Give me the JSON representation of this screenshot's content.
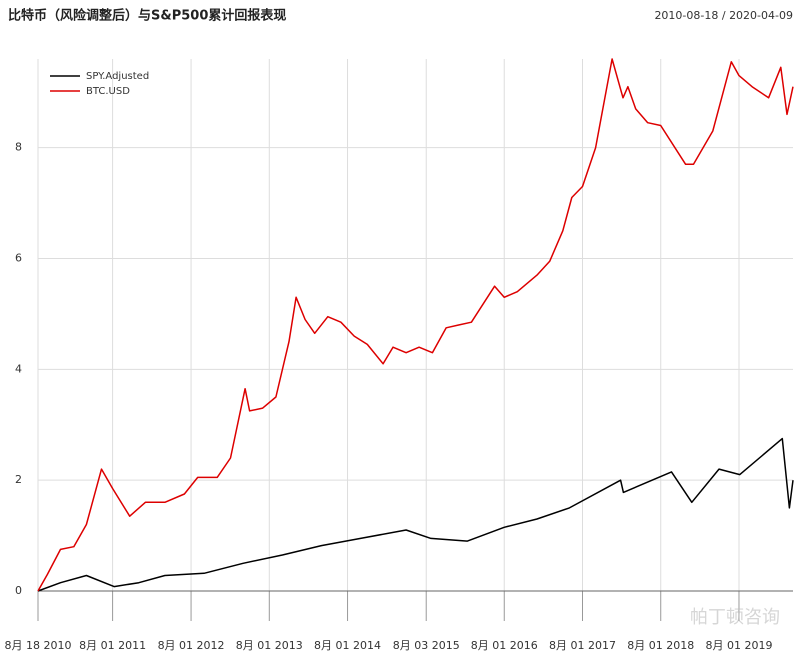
{
  "chart_data": {
    "type": "line",
    "title": "比特币（风险调整后）与S&P500累计回报表现",
    "subtitle": "2010-08-18 / 2020-04-09",
    "watermark": "帕丁顿咨询",
    "xlim": [
      "2010-08-18",
      "2020-04-09"
    ],
    "xticks": [
      {
        "value": "2010-08-18",
        "label": "8月 18 2010"
      },
      {
        "value": "2011-08-01",
        "label": "8月 01 2011"
      },
      {
        "value": "2012-08-01",
        "label": "8月 01 2012"
      },
      {
        "value": "2013-08-01",
        "label": "8月 01 2013"
      },
      {
        "value": "2014-08-01",
        "label": "8月 01 2014"
      },
      {
        "value": "2015-08-03",
        "label": "8月 03 2015"
      },
      {
        "value": "2016-08-01",
        "label": "8月 01 2016"
      },
      {
        "value": "2017-08-01",
        "label": "8月 01 2017"
      },
      {
        "value": "2018-08-01",
        "label": "8月 01 2018"
      },
      {
        "value": "2019-08-01",
        "label": "8月 01 2019"
      }
    ],
    "ylim": [
      0,
      9.6
    ],
    "yticks": [
      0,
      2,
      4,
      6,
      8
    ],
    "grid": true,
    "legend": "top-left",
    "series": [
      {
        "name": "SPY.Adjusted",
        "color": "#000000",
        "x": [
          "2010-08-18",
          "2010-12-01",
          "2011-04-01",
          "2011-08-08",
          "2011-12-01",
          "2012-04-01",
          "2012-10-01",
          "2013-04-01",
          "2013-10-01",
          "2014-04-01",
          "2014-10-01",
          "2015-05-01",
          "2015-08-25",
          "2016-02-11",
          "2016-08-01",
          "2017-01-01",
          "2017-06-01",
          "2018-01-26",
          "2018-02-08",
          "2018-09-20",
          "2018-12-24",
          "2019-04-30",
          "2019-08-05",
          "2020-02-19",
          "2020-03-23",
          "2020-04-09"
        ],
        "values": [
          0,
          0.15,
          0.28,
          0.08,
          0.15,
          0.28,
          0.32,
          0.5,
          0.65,
          0.82,
          0.95,
          1.1,
          0.95,
          0.9,
          1.15,
          1.3,
          1.5,
          2.0,
          1.78,
          2.15,
          1.6,
          2.2,
          2.1,
          2.75,
          1.5,
          2.0
        ]
      },
      {
        "name": "BTC.USD",
        "color": "#dd0000",
        "x": [
          "2010-08-18",
          "2010-10-01",
          "2010-12-01",
          "2011-02-01",
          "2011-04-01",
          "2011-06-10",
          "2011-08-01",
          "2011-10-20",
          "2012-01-01",
          "2012-04-01",
          "2012-07-01",
          "2012-09-01",
          "2012-12-01",
          "2013-02-01",
          "2013-04-10",
          "2013-05-01",
          "2013-07-01",
          "2013-09-01",
          "2013-11-01",
          "2013-12-04",
          "2014-01-15",
          "2014-03-01",
          "2014-05-01",
          "2014-07-01",
          "2014-09-01",
          "2014-11-01",
          "2015-01-14",
          "2015-03-01",
          "2015-05-01",
          "2015-07-01",
          "2015-09-01",
          "2015-11-04",
          "2016-01-01",
          "2016-03-01",
          "2016-06-17",
          "2016-08-01",
          "2016-10-01",
          "2017-01-01",
          "2017-03-01",
          "2017-05-01",
          "2017-06-12",
          "2017-08-01",
          "2017-10-01",
          "2017-12-17",
          "2018-02-06",
          "2018-03-01",
          "2018-04-06",
          "2018-06-01",
          "2018-08-01",
          "2018-11-25",
          "2019-01-01",
          "2019-04-01",
          "2019-06-26",
          "2019-08-01",
          "2019-10-01",
          "2019-12-17",
          "2020-02-12",
          "2020-03-12",
          "2020-04-09"
        ],
        "values": [
          0,
          0.3,
          0.75,
          0.8,
          1.2,
          2.2,
          1.85,
          1.35,
          1.6,
          1.6,
          1.75,
          2.05,
          2.05,
          2.4,
          3.65,
          3.25,
          3.3,
          3.5,
          4.5,
          5.3,
          4.9,
          4.65,
          4.95,
          4.85,
          4.6,
          4.45,
          4.1,
          4.4,
          4.3,
          4.4,
          4.3,
          4.75,
          4.8,
          4.85,
          5.5,
          5.3,
          5.4,
          5.7,
          5.95,
          6.5,
          7.1,
          7.3,
          8.0,
          9.6,
          8.9,
          9.1,
          8.7,
          8.45,
          8.4,
          7.7,
          7.7,
          8.3,
          9.55,
          9.3,
          9.1,
          8.9,
          9.45,
          8.6,
          9.1
        ]
      }
    ]
  }
}
